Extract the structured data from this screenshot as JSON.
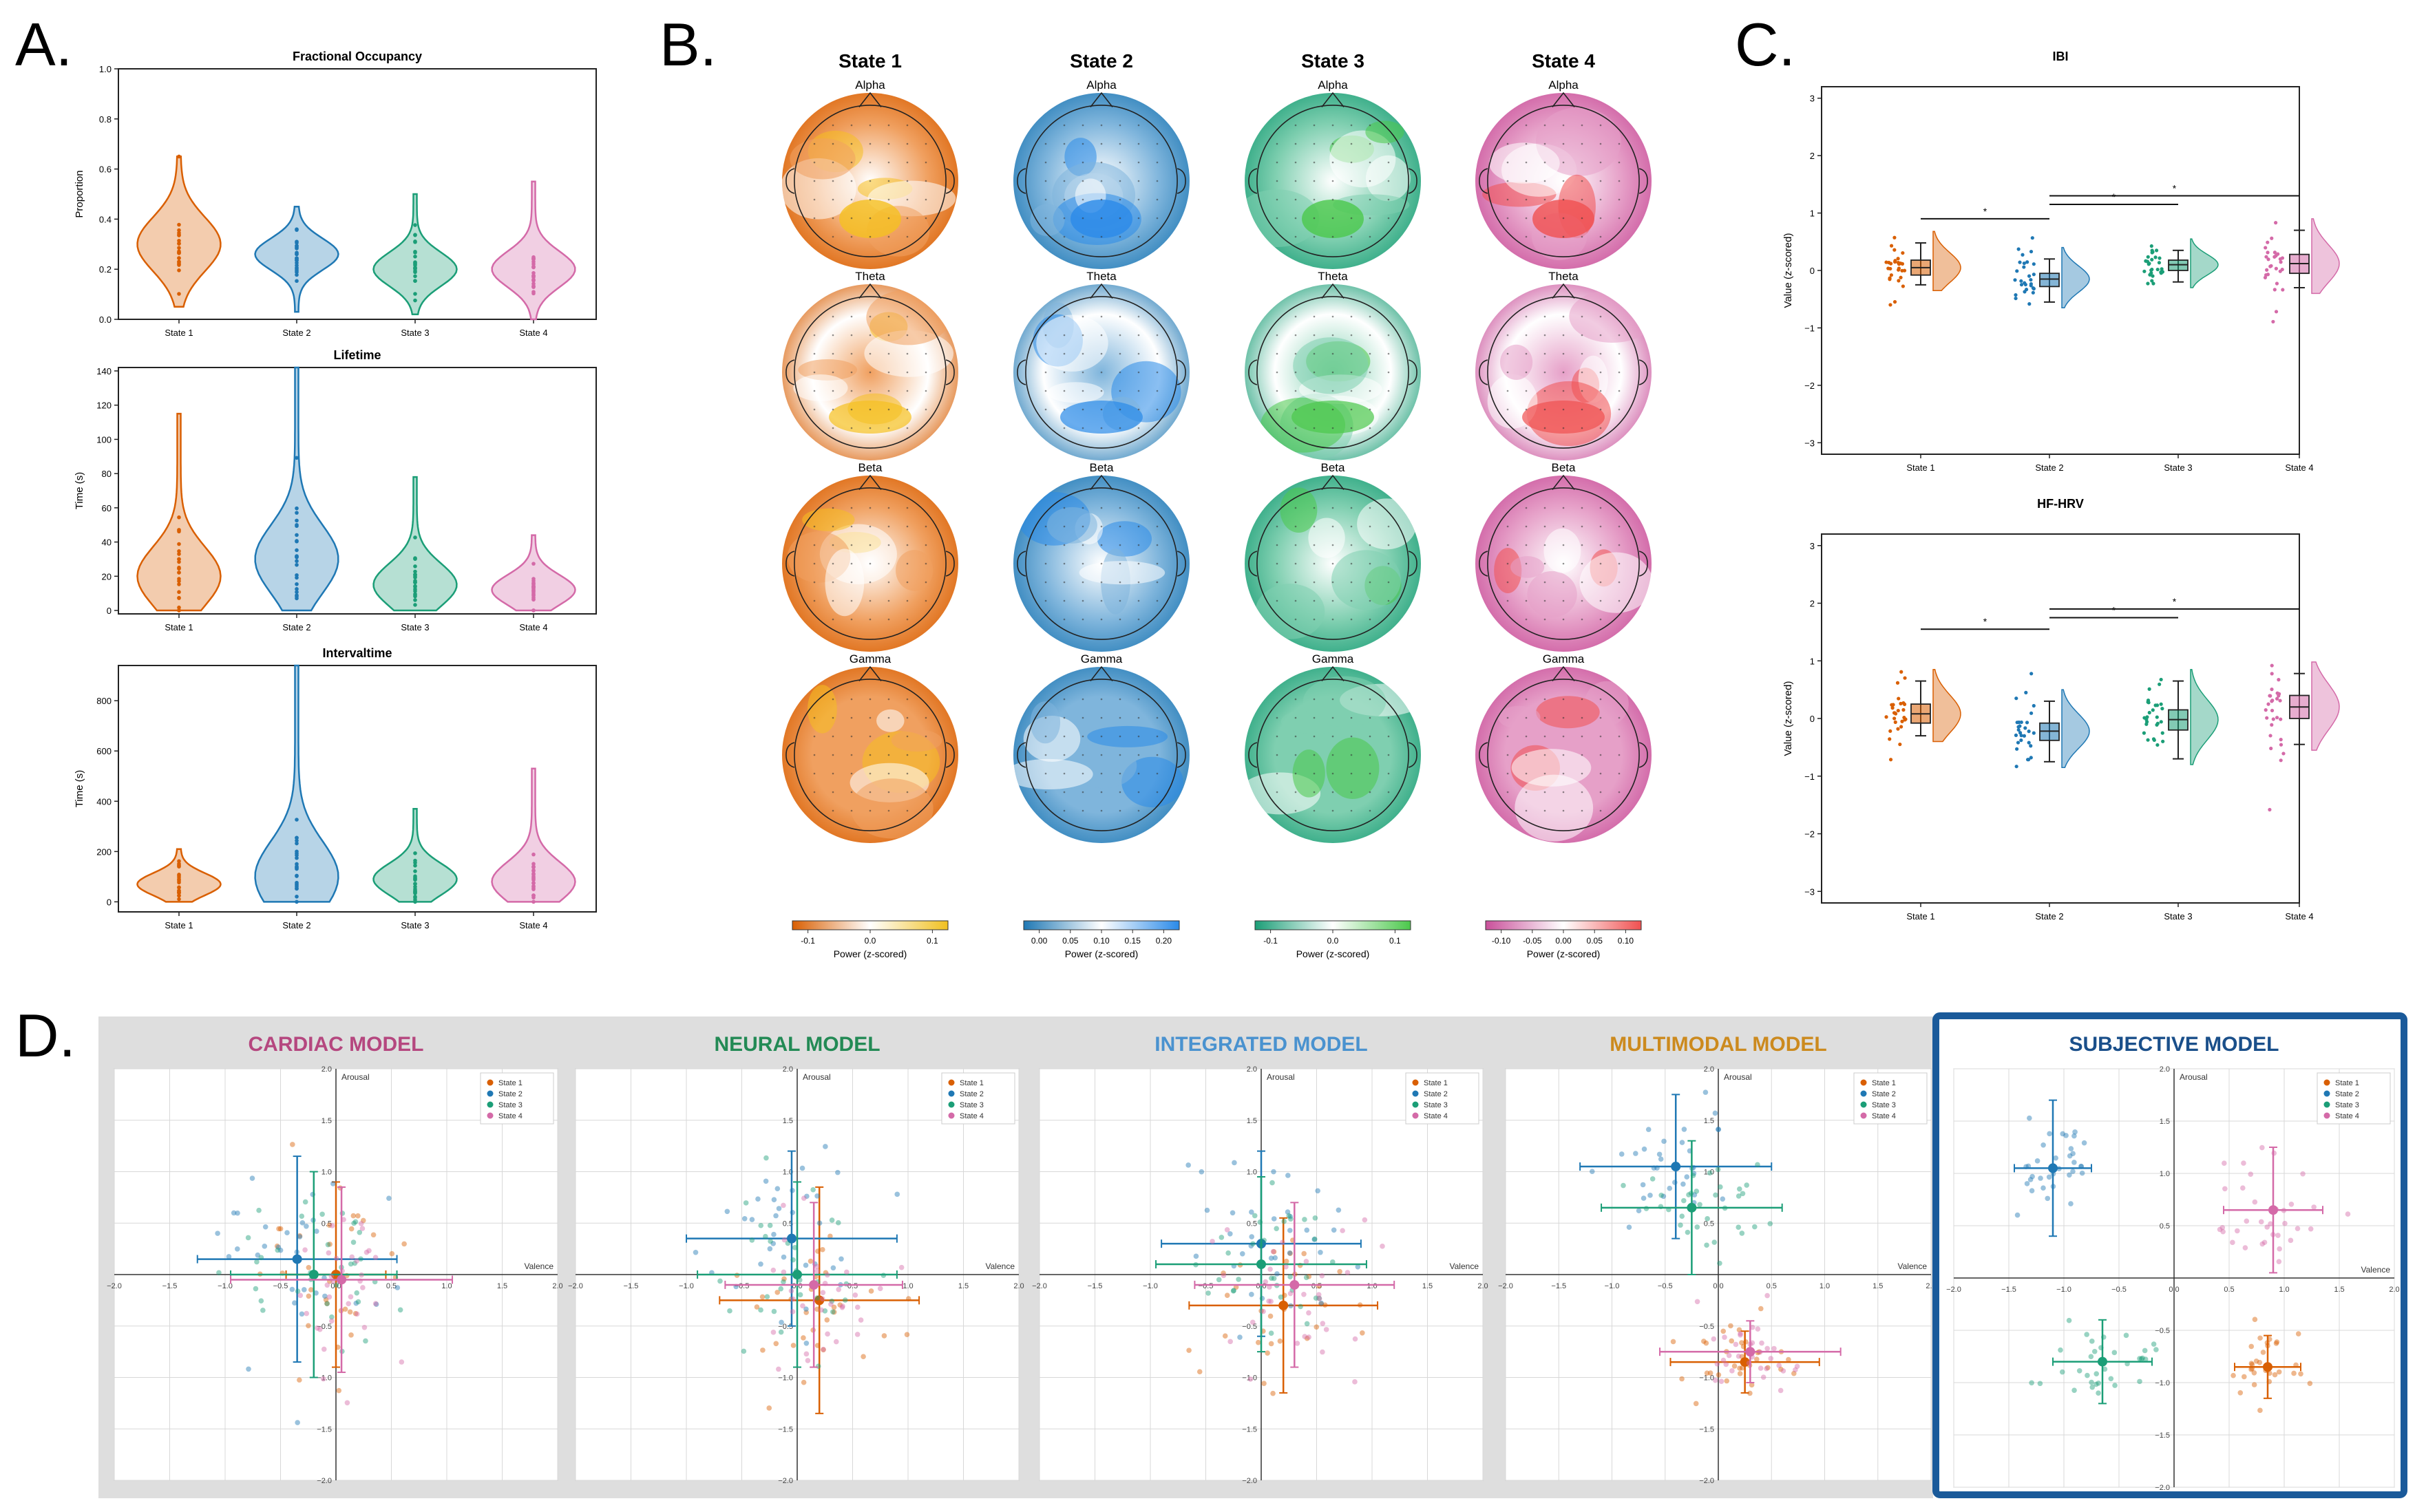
{
  "panel_labels": {
    "a": "A.",
    "b": "B.",
    "c": "C.",
    "d": "D."
  },
  "colors": {
    "state1": "#d95f02",
    "state2": "#1f78b4",
    "state3": "#1b9e77",
    "state4": "#d46aa8",
    "highlight": "#1a5a9a",
    "grey_bg": "#dedede"
  },
  "chart_data": [
    {
      "id": "violin-fo",
      "type": "violin",
      "title": "Fractional Occupancy",
      "ylabel": "Proportion",
      "ylim": [
        0,
        1
      ],
      "yticks": [
        "0.0",
        "0.2",
        "0.4",
        "0.6",
        "0.8",
        "1.0"
      ],
      "categories": [
        "State 1",
        "State 2",
        "State 3",
        "State 4"
      ],
      "series": [
        {
          "name": "State 1",
          "median": 0.3,
          "min": 0.05,
          "max": 0.65,
          "spread": 0.36
        },
        {
          "name": "State 2",
          "median": 0.26,
          "min": 0.03,
          "max": 0.45,
          "spread": 0.3
        },
        {
          "name": "State 3",
          "median": 0.2,
          "min": 0.02,
          "max": 0.5,
          "spread": 0.28
        },
        {
          "name": "State 4",
          "median": 0.2,
          "min": 0.0,
          "max": 0.55,
          "spread": 0.26
        }
      ]
    },
    {
      "id": "violin-lt",
      "type": "violin",
      "title": "Lifetime",
      "ylabel": "Time (s)",
      "ylim": [
        -2,
        142
      ],
      "yticks": [
        "0",
        "20",
        "40",
        "60",
        "80",
        "100",
        "120",
        "140"
      ],
      "categories": [
        "State 1",
        "State 2",
        "State 3",
        "State 4"
      ],
      "series": [
        {
          "name": "State 1",
          "median": 20,
          "min": 0,
          "max": 115,
          "spread": 0.3
        },
        {
          "name": "State 2",
          "median": 30,
          "min": 0,
          "max": 142,
          "spread": 0.28
        },
        {
          "name": "State 3",
          "median": 15,
          "min": 0,
          "max": 78,
          "spread": 0.32
        },
        {
          "name": "State 4",
          "median": 12,
          "min": 0,
          "max": 44,
          "spread": 0.4
        }
      ]
    },
    {
      "id": "violin-it",
      "type": "violin",
      "title": "Intervaltime",
      "ylabel": "Time (s)",
      "ylim": [
        -40,
        940
      ],
      "yticks": [
        "0",
        "200",
        "400",
        "600",
        "800"
      ],
      "categories": [
        "State 1",
        "State 2",
        "State 3",
        "State 4"
      ],
      "series": [
        {
          "name": "State 1",
          "median": 70,
          "min": 0,
          "max": 210,
          "spread": 0.42
        },
        {
          "name": "State 2",
          "median": 100,
          "min": 0,
          "max": 940,
          "spread": 0.3
        },
        {
          "name": "State 3",
          "median": 90,
          "min": 0,
          "max": 370,
          "spread": 0.34
        },
        {
          "name": "State 4",
          "median": 80,
          "min": 0,
          "max": 530,
          "spread": 0.3
        }
      ]
    },
    {
      "id": "topo",
      "type": "heatmap",
      "column_titles": [
        "State 1",
        "State 2",
        "State 3",
        "State 4"
      ],
      "row_labels": [
        "Alpha",
        "Theta",
        "Beta",
        "Gamma"
      ],
      "colorbars": [
        {
          "label": "Power (z-scored)",
          "ticks": [
            "-0.1",
            "0.0",
            "0.1"
          ],
          "from": "#d95f02",
          "to": "#f0c020"
        },
        {
          "label": "Power (z-scored)",
          "ticks": [
            "0.00",
            "0.05",
            "0.10",
            "0.15",
            "0.20"
          ],
          "from": "#1f78b4",
          "to": "#2a8ae8"
        },
        {
          "label": "Power (z-scored)",
          "ticks": [
            "-0.1",
            "0.0",
            "0.1"
          ],
          "from": "#1b9e77",
          "to": "#4bc84b"
        },
        {
          "label": "Power (z-scored)",
          "ticks": [
            "-0.10",
            "-0.05",
            "0.00",
            "0.05",
            "0.10"
          ],
          "from": "#c9509a",
          "to": "#f05050"
        }
      ]
    },
    {
      "id": "raincloud-ibi",
      "type": "box",
      "title": "IBI",
      "ylabel": "Value (z-scored)",
      "ylim": [
        -3.2,
        3.2
      ],
      "yticks": [
        "3",
        "2",
        "1",
        "0",
        "−1",
        "−2",
        "−3"
      ],
      "categories": [
        "State 1",
        "State 2",
        "State 3",
        "State 4"
      ],
      "series": [
        {
          "name": "State 1",
          "median": 0.05,
          "q1": -0.08,
          "q3": 0.18,
          "whisker_low": -0.25,
          "whisker_high": 0.48
        },
        {
          "name": "State 2",
          "median": -0.15,
          "q1": -0.28,
          "q3": -0.05,
          "whisker_low": -0.55,
          "whisker_high": 0.2
        },
        {
          "name": "State 3",
          "median": 0.1,
          "q1": 0.0,
          "q3": 0.18,
          "whisker_low": -0.2,
          "whisker_high": 0.35
        },
        {
          "name": "State 4",
          "median": 0.12,
          "q1": -0.05,
          "q3": 0.28,
          "whisker_low": -0.3,
          "whisker_high": 0.7
        }
      ],
      "significance": [
        {
          "from": "State 1",
          "to": "State 2",
          "level": 0.9,
          "label": "*"
        },
        {
          "from": "State 2",
          "to": "State 3",
          "level": 1.15,
          "label": "*"
        },
        {
          "from": "State 2",
          "to": "State 4",
          "level": 1.3,
          "label": "*"
        }
      ]
    },
    {
      "id": "raincloud-hrv",
      "type": "box",
      "title": "HF-HRV",
      "ylabel": "Value (z-scored)",
      "ylim": [
        -3.2,
        3.2
      ],
      "yticks": [
        "3",
        "2",
        "1",
        "0",
        "−1",
        "−2",
        "−3"
      ],
      "categories": [
        "State 1",
        "State 2",
        "State 3",
        "State 4"
      ],
      "series": [
        {
          "name": "State 1",
          "median": 0.08,
          "q1": -0.08,
          "q3": 0.25,
          "whisker_low": -0.3,
          "whisker_high": 0.65
        },
        {
          "name": "State 2",
          "median": -0.22,
          "q1": -0.38,
          "q3": -0.08,
          "whisker_low": -0.75,
          "whisker_high": 0.3
        },
        {
          "name": "State 3",
          "median": -0.02,
          "q1": -0.2,
          "q3": 0.15,
          "whisker_low": -0.7,
          "whisker_high": 0.65
        },
        {
          "name": "State 4",
          "median": 0.2,
          "q1": 0.0,
          "q3": 0.4,
          "whisker_low": -0.45,
          "whisker_high": 0.78
        }
      ],
      "significance": [
        {
          "from": "State 1",
          "to": "State 2",
          "level": 1.55,
          "label": "*"
        },
        {
          "from": "State 2",
          "to": "State 3",
          "level": 1.75,
          "label": "*"
        },
        {
          "from": "State 2",
          "to": "State 4",
          "level": 1.9,
          "label": "*"
        }
      ]
    },
    {
      "id": "models",
      "type": "scatter",
      "xlabel": "Valence",
      "ylabel": "Arousal",
      "xlim": [
        -2,
        2
      ],
      "ylim": [
        -2,
        2
      ],
      "xticks": [
        "−2.0",
        "−1.5",
        "−1.0",
        "−0.5",
        "0.0",
        "0.5",
        "1.0",
        "1.5",
        "2.0"
      ],
      "yticks": [
        "2.0",
        "1.5",
        "1.0",
        "0.5",
        "−0.5",
        "−1.0",
        "−1.5",
        "−2.0"
      ],
      "legend": [
        "State 1",
        "State 2",
        "State 3",
        "State 4"
      ],
      "models": [
        {
          "title": "CARDIAC MODEL",
          "color": "#b5477f",
          "centers": [
            {
              "x": 0.0,
              "y": 0.0,
              "sx": 0.3,
              "sy": 0.55
            },
            {
              "x": -0.35,
              "y": 0.15,
              "sx": 0.45,
              "sy": 0.5
            },
            {
              "x": -0.2,
              "y": 0.0,
              "sx": 0.35,
              "sy": 0.45
            },
            {
              "x": 0.05,
              "y": -0.05,
              "sx": 0.25,
              "sy": 0.5
            }
          ],
          "errors": [
            {
              "x": 0.45,
              "y": 0.9
            },
            {
              "x": 0.9,
              "y": 1.0
            },
            {
              "x": 0.75,
              "y": 1.0
            },
            {
              "x": 1.0,
              "y": 0.9
            }
          ]
        },
        {
          "title": "NEURAL MODEL",
          "color": "#238a55",
          "centers": [
            {
              "x": 0.2,
              "y": -0.25,
              "sx": 0.35,
              "sy": 0.4
            },
            {
              "x": -0.05,
              "y": 0.35,
              "sx": 0.35,
              "sy": 0.45
            },
            {
              "x": 0.0,
              "y": 0.0,
              "sx": 0.3,
              "sy": 0.4
            },
            {
              "x": 0.15,
              "y": -0.1,
              "sx": 0.3,
              "sy": 0.35
            }
          ],
          "errors": [
            {
              "x": 0.9,
              "y": 1.1
            },
            {
              "x": 0.95,
              "y": 0.85
            },
            {
              "x": 0.9,
              "y": 0.9
            },
            {
              "x": 0.8,
              "y": 0.8
            }
          ]
        },
        {
          "title": "INTEGRATED MODEL",
          "color": "#4a92cf",
          "centers": [
            {
              "x": 0.2,
              "y": -0.3,
              "sx": 0.35,
              "sy": 0.4
            },
            {
              "x": 0.0,
              "y": 0.3,
              "sx": 0.35,
              "sy": 0.45
            },
            {
              "x": 0.0,
              "y": 0.1,
              "sx": 0.3,
              "sy": 0.4
            },
            {
              "x": 0.3,
              "y": -0.1,
              "sx": 0.35,
              "sy": 0.35
            }
          ],
          "errors": [
            {
              "x": 0.85,
              "y": 0.85
            },
            {
              "x": 0.9,
              "y": 0.9
            },
            {
              "x": 0.95,
              "y": 0.85
            },
            {
              "x": 0.9,
              "y": 0.8
            }
          ]
        },
        {
          "title": "MULTIMODAL MODEL",
          "color": "#cc8a1e",
          "centers": [
            {
              "x": 0.25,
              "y": -0.85,
              "sx": 0.3,
              "sy": 0.2
            },
            {
              "x": -0.4,
              "y": 1.05,
              "sx": 0.35,
              "sy": 0.25
            },
            {
              "x": -0.25,
              "y": 0.65,
              "sx": 0.35,
              "sy": 0.25
            },
            {
              "x": 0.3,
              "y": -0.75,
              "sx": 0.25,
              "sy": 0.2
            }
          ],
          "errors": [
            {
              "x": 0.7,
              "y": 0.3
            },
            {
              "x": 0.9,
              "y": 0.7
            },
            {
              "x": 0.85,
              "y": 0.65
            },
            {
              "x": 0.85,
              "y": 0.3
            }
          ]
        },
        {
          "title": "SUBJECTIVE MODEL",
          "color": "#1a4f8a",
          "centers": [
            {
              "x": 0.85,
              "y": -0.85,
              "sx": 0.18,
              "sy": 0.15
            },
            {
              "x": -1.1,
              "y": 1.05,
              "sx": 0.2,
              "sy": 0.2
            },
            {
              "x": -0.65,
              "y": -0.8,
              "sx": 0.22,
              "sy": 0.18
            },
            {
              "x": 0.9,
              "y": 0.65,
              "sx": 0.25,
              "sy": 0.3
            }
          ],
          "errors": [
            {
              "x": 0.3,
              "y": 0.3
            },
            {
              "x": 0.35,
              "y": 0.65
            },
            {
              "x": 0.45,
              "y": 0.4
            },
            {
              "x": 0.45,
              "y": 0.6
            }
          ]
        }
      ]
    }
  ]
}
